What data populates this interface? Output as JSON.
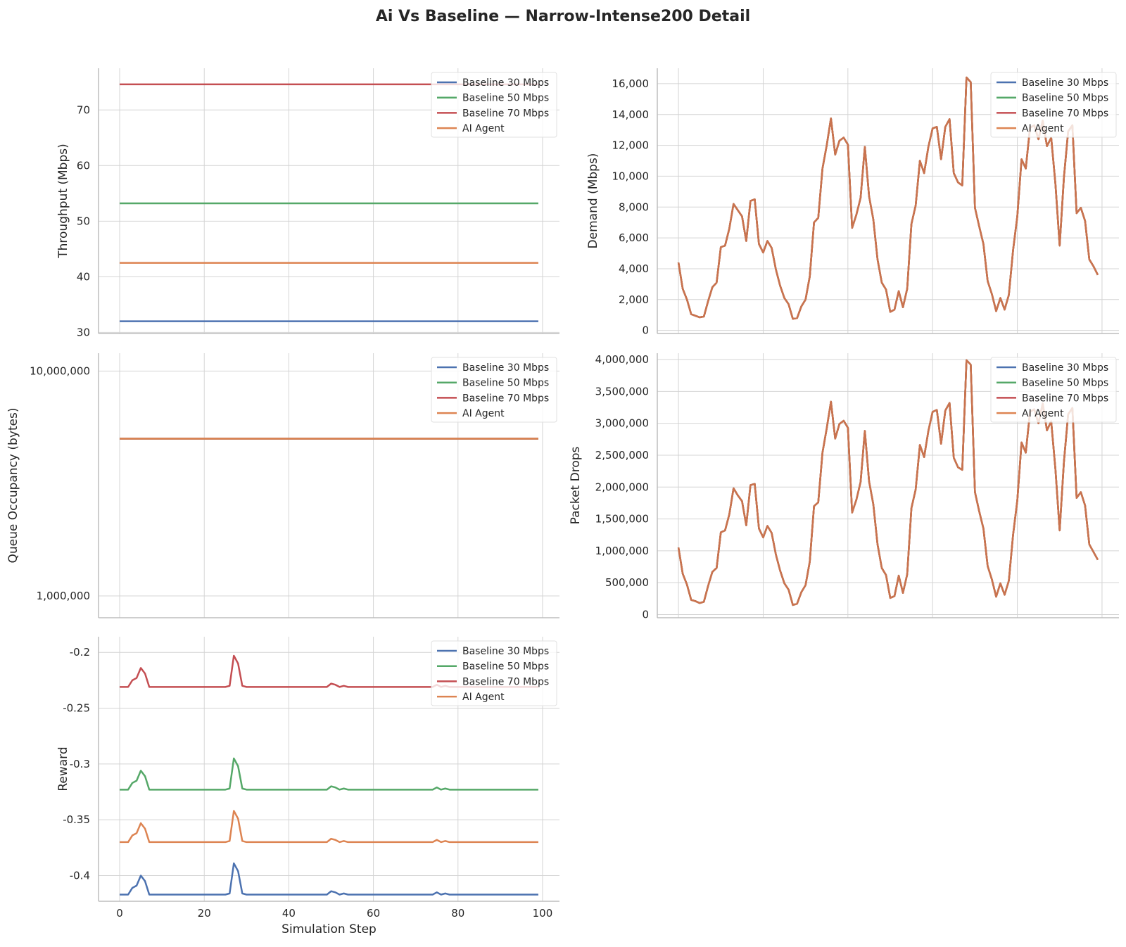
{
  "figure": {
    "title": "Ai Vs Baseline — Narrow-Intense200 Detail"
  },
  "series_names": [
    "Baseline 30 Mbps",
    "Baseline 50 Mbps",
    "Baseline 70 Mbps",
    "AI Agent"
  ],
  "colors": {
    "baseline30": "#4c72b0",
    "baseline50": "#55a868",
    "baseline70": "#c44e52",
    "ai_agent": "#dd8452",
    "grid": "#d4d4d4",
    "text": "#262626"
  },
  "chart_data": [
    {
      "type": "line",
      "panel": "throughput",
      "xlabel": "",
      "ylabel": "Throughput (Mbps)",
      "xlim": [
        -5,
        104
      ],
      "ylim": [
        29.8,
        77.5
      ],
      "yticks": [
        30,
        40,
        50,
        60,
        70
      ],
      "ytick_labels": [
        "30",
        "40",
        "50",
        "60",
        "70"
      ],
      "xticks": [
        0,
        20,
        40,
        60,
        80,
        100
      ],
      "legend": "top-right",
      "grid": true,
      "series": [
        {
          "name": "Baseline 30 Mbps",
          "constant": 32,
          "x": [
            0,
            99
          ]
        },
        {
          "name": "Baseline 50 Mbps",
          "constant": 53.2,
          "x": [
            0,
            99
          ]
        },
        {
          "name": "Baseline 70 Mbps",
          "constant": 74.6,
          "x": [
            0,
            99
          ]
        },
        {
          "name": "AI Agent",
          "constant": 42.5,
          "x": [
            0,
            99
          ]
        }
      ]
    },
    {
      "type": "line",
      "panel": "demand",
      "xlabel": "",
      "ylabel": "Demand (Mbps)",
      "xlim": [
        -5,
        104
      ],
      "ylim": [
        -200,
        17000
      ],
      "yticks": [
        0,
        2000,
        4000,
        6000,
        8000,
        10000,
        12000,
        14000,
        16000
      ],
      "ytick_labels": [
        "0",
        "2,000",
        "4,000",
        "6,000",
        "8,000",
        "10,000",
        "12,000",
        "14,000",
        "16,000"
      ],
      "xticks": [
        0,
        20,
        40,
        60,
        80,
        100
      ],
      "legend": "top-right",
      "grid": true,
      "series_overlap": true,
      "values": [
        4400,
        2700,
        2000,
        1050,
        950,
        850,
        900,
        1900,
        2800,
        3100,
        5400,
        5500,
        6600,
        8200,
        7800,
        7400,
        5800,
        8400,
        8500,
        5600,
        5050,
        5800,
        5350,
        3950,
        2900,
        2100,
        1700,
        750,
        800,
        1550,
        2000,
        3500,
        7000,
        7300,
        10500,
        12000,
        13750,
        11400,
        12300,
        12500,
        12050,
        6650,
        7500,
        8600,
        11900,
        8700,
        7200,
        4600,
        3100,
        2650,
        1200,
        1350,
        2550,
        1500,
        2700,
        6900,
        8100,
        11000,
        10200,
        11900,
        13100,
        13200,
        11100,
        13200,
        13700,
        10200,
        9600,
        9400,
        16400,
        16100,
        7950,
        6750,
        5600,
        3200,
        2350,
        1250,
        2100,
        1350,
        2300,
        5200,
        7400,
        11100,
        10500,
        13150,
        13300,
        12400,
        13600,
        11950,
        12500,
        9500,
        5500,
        9900,
        12900,
        13300,
        7600,
        7950,
        7100,
        4600,
        4150,
        3600
      ]
    },
    {
      "type": "line",
      "panel": "queue",
      "xlabel": "",
      "ylabel": "Queue Occupancy (bytes)",
      "yscale": "log",
      "xlim": [
        -5,
        104
      ],
      "ylim": [
        800000,
        12000000
      ],
      "yticks": [
        1000000,
        10000000
      ],
      "ytick_labels": [
        "1,000,000",
        "10,000,000"
      ],
      "xticks": [
        0,
        20,
        40,
        60,
        80,
        100
      ],
      "legend": "top-right",
      "grid": true,
      "series_overlap": true,
      "constant": 5000000,
      "x": [
        0,
        99
      ]
    },
    {
      "type": "line",
      "panel": "drops",
      "xlabel": "",
      "ylabel": "Packet Drops",
      "xlim": [
        -5,
        104
      ],
      "ylim": [
        -50000,
        4100000
      ],
      "yticks": [
        0,
        500000,
        1000000,
        1500000,
        2000000,
        2500000,
        3000000,
        3500000,
        4000000
      ],
      "ytick_labels": [
        "0",
        "500,000",
        "1,000,000",
        "1,500,000",
        "2,000,000",
        "2,500,000",
        "3,000,000",
        "3,500,000",
        "4,000,000"
      ],
      "xticks": [
        0,
        20,
        40,
        60,
        80,
        100
      ],
      "legend": "top-right",
      "grid": true,
      "series_overlap": true,
      "values": [
        1050000,
        640000,
        470000,
        230000,
        210000,
        180000,
        200000,
        450000,
        670000,
        730000,
        1290000,
        1320000,
        1570000,
        1980000,
        1870000,
        1780000,
        1400000,
        2030000,
        2050000,
        1350000,
        1210000,
        1390000,
        1280000,
        940000,
        690000,
        490000,
        390000,
        150000,
        170000,
        350000,
        460000,
        830000,
        1700000,
        1760000,
        2540000,
        2920000,
        3340000,
        2760000,
        2990000,
        3040000,
        2930000,
        1600000,
        1800000,
        2080000,
        2880000,
        2090000,
        1730000,
        1100000,
        730000,
        620000,
        260000,
        290000,
        610000,
        340000,
        630000,
        1670000,
        1960000,
        2660000,
        2470000,
        2880000,
        3180000,
        3210000,
        2680000,
        3200000,
        3320000,
        2460000,
        2310000,
        2270000,
        3990000,
        3920000,
        1920000,
        1620000,
        1350000,
        760000,
        550000,
        280000,
        490000,
        310000,
        530000,
        1250000,
        1790000,
        2700000,
        2540000,
        3180000,
        3220000,
        3000000,
        3310000,
        2890000,
        3030000,
        2280000,
        1320000,
        2390000,
        3140000,
        3240000,
        1830000,
        1920000,
        1710000,
        1100000,
        980000,
        860000
      ]
    },
    {
      "type": "line",
      "panel": "reward",
      "xlabel": "Simulation Step",
      "ylabel": "Reward",
      "xlim": [
        -5,
        104
      ],
      "ylim": [
        -0.423,
        -0.186
      ],
      "yticks": [
        -0.2,
        -0.25,
        -0.3,
        -0.35,
        -0.4
      ],
      "ytick_labels": [
        "-0.2",
        "-0.25",
        "-0.3",
        "-0.35",
        "-0.4"
      ],
      "xticks": [
        0,
        20,
        40,
        60,
        80,
        100
      ],
      "xtick_labels": [
        "0",
        "20",
        "40",
        "60",
        "80",
        "100"
      ],
      "legend": "top-right",
      "grid": true,
      "baselines": {
        "Baseline 70 Mbps": -0.231,
        "Baseline 50 Mbps": -0.323,
        "AI Agent": -0.37,
        "Baseline 30 Mbps": -0.417
      },
      "offsets": [
        0,
        0,
        0,
        0.006,
        0.008,
        0.017,
        0.012,
        0,
        0,
        0,
        0,
        0,
        0,
        0,
        0,
        0,
        0,
        0,
        0,
        0,
        0,
        0,
        0,
        0,
        0,
        0,
        0.001,
        0.028,
        0.021,
        0.001,
        0,
        0,
        0,
        0,
        0,
        0,
        0,
        0,
        0,
        0,
        0,
        0,
        0,
        0,
        0,
        0,
        0,
        0,
        0,
        0,
        0.003,
        0.002,
        0,
        0.001,
        0,
        0,
        0,
        0,
        0,
        0,
        0,
        0,
        0,
        0,
        0,
        0,
        0,
        0,
        0,
        0,
        0,
        0,
        0,
        0,
        0,
        0.002,
        0,
        0.001,
        0,
        0,
        0,
        0,
        0,
        0,
        0,
        0,
        0,
        0,
        0,
        0,
        0,
        0,
        0,
        0,
        0,
        0,
        0,
        0,
        0,
        0
      ],
      "series": [
        {
          "name": "Baseline 30 Mbps"
        },
        {
          "name": "Baseline 50 Mbps"
        },
        {
          "name": "Baseline 70 Mbps"
        },
        {
          "name": "AI Agent"
        }
      ]
    }
  ]
}
